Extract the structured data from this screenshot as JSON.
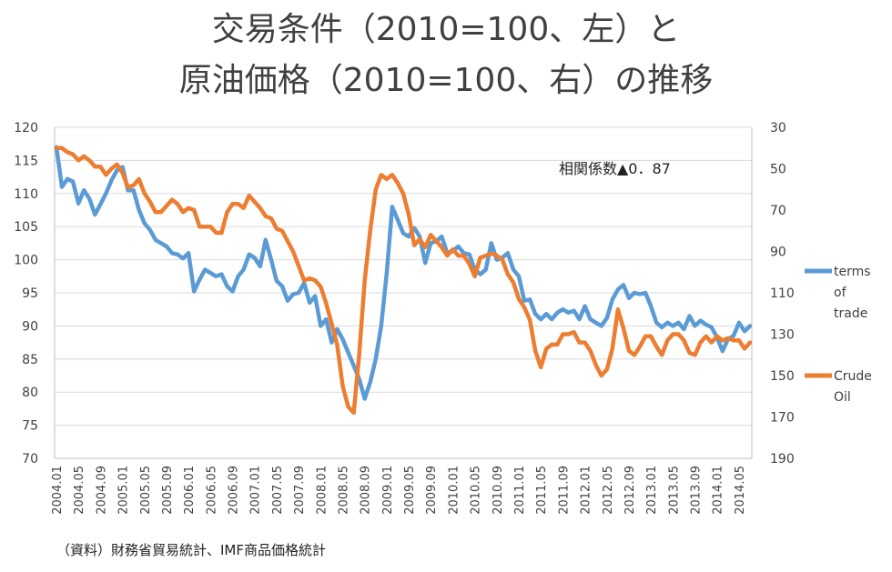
{
  "header": {
    "title_line1": "交易条件（2010=100、左）と",
    "title_line2": "原油価格（2010=100、右）の推移"
  },
  "source_note": "（資料）財務省貿易統計、IMF商品価格統計",
  "chart_data": {
    "type": "line",
    "title": "交易条件（2010=100、左）と原油価格（2010=100、右）の推移",
    "x_tick_labels": [
      "2004.01",
      "2004.05",
      "2004.09",
      "2005.01",
      "2005.05",
      "2005.09",
      "2006.01",
      "2006.05",
      "2006.09",
      "2007.01",
      "2007.05",
      "2007.09",
      "2008.01",
      "2008.05",
      "2008.09",
      "2009.01",
      "2009.05",
      "2009.09",
      "2010.01",
      "2010.05",
      "2010.09",
      "2011.01",
      "2011.05",
      "2011.09",
      "2012.01",
      "2012.05",
      "2012.09",
      "2013.01",
      "2013.05",
      "2013.09",
      "2014.01",
      "2014.05"
    ],
    "x_start": "2004.01",
    "x_end": "2014.07",
    "left_axis": {
      "min": 70,
      "max": 120,
      "ticks": [
        "70",
        "75",
        "80",
        "85",
        "90",
        "95",
        "100",
        "105",
        "110",
        "115",
        "120"
      ]
    },
    "right_axis": {
      "min": 30,
      "max": 190,
      "inverted": true,
      "ticks": [
        "30",
        "50",
        "70",
        "90",
        "110",
        "130",
        "150",
        "170",
        "190"
      ]
    },
    "annotation": "相関係数▲0．87",
    "colors": {
      "terms": "#5b9bd5",
      "crude": "#ed7d31"
    },
    "series": [
      {
        "name": "terms of trade",
        "legend_lines": [
          "terms",
          "of",
          "trade"
        ],
        "axis": "left",
        "values": [
          117,
          111,
          112.2,
          111.8,
          108.5,
          110.5,
          109.2,
          106.8,
          108.4,
          110,
          112,
          113.5,
          114,
          110.5,
          110.5,
          107.5,
          105.5,
          104.5,
          103,
          102.5,
          102,
          101,
          100.8,
          100.2,
          101,
          95.2,
          97,
          98.5,
          98,
          97.5,
          97.8,
          96,
          95.2,
          97.5,
          98.5,
          100.8,
          100.3,
          99,
          103,
          100,
          96.8,
          96,
          93.8,
          94.8,
          95,
          96.5,
          93.5,
          94.5,
          90,
          91,
          87.5,
          89.5,
          88,
          86,
          84,
          82,
          79,
          81.5,
          85,
          90,
          98,
          108,
          106,
          104,
          103.5,
          104.8,
          103.5,
          99.5,
          102.5,
          102.8,
          103.5,
          101,
          101.3,
          102,
          101,
          100.8,
          98.5,
          97.8,
          98.5,
          102.5,
          100,
          100.3,
          101,
          98.5,
          97.5,
          93.8,
          94,
          91.8,
          91,
          91.8,
          91,
          92,
          92.5,
          92,
          92.3,
          91,
          93,
          91,
          90.5,
          90,
          91.2,
          94,
          95.5,
          96.2,
          94.2,
          95,
          94.8,
          95,
          93,
          90.5,
          89.8,
          90.5,
          90,
          90.5,
          89.5,
          91.5,
          90,
          90.8,
          90.2,
          89.8,
          88.3,
          86.2,
          88,
          88.5,
          90.5,
          89.2,
          90
        ]
      },
      {
        "name": "Crude Oil",
        "legend_lines": [
          "Crude",
          "Oil"
        ],
        "axis": "right",
        "values": [
          40,
          40,
          42,
          43,
          46,
          44,
          46,
          49,
          49,
          53,
          50,
          48,
          52,
          59,
          58,
          55,
          62,
          66,
          71,
          71,
          68,
          65,
          67,
          71,
          69,
          70,
          78,
          78,
          78,
          81,
          81,
          71,
          67,
          67,
          69,
          63,
          66,
          69,
          73,
          74,
          79,
          80,
          85,
          90,
          97,
          104,
          103,
          104,
          107,
          115,
          125,
          135,
          155,
          165,
          168,
          140,
          104,
          80,
          60,
          53,
          55,
          53,
          57,
          62,
          72,
          87,
          84,
          88,
          82,
          85,
          88,
          92,
          89,
          92,
          92,
          96,
          102,
          93,
          92,
          91,
          92,
          94,
          101,
          105,
          113,
          117,
          123,
          138,
          146,
          137,
          135,
          135,
          130,
          130,
          129,
          134,
          134,
          138,
          145,
          150,
          147,
          137,
          118,
          127,
          138,
          140,
          136,
          131,
          131,
          136,
          140,
          133,
          130,
          130,
          133,
          139,
          140,
          134,
          131,
          134,
          131,
          133,
          132,
          133,
          133,
          137,
          134
        ]
      }
    ]
  }
}
